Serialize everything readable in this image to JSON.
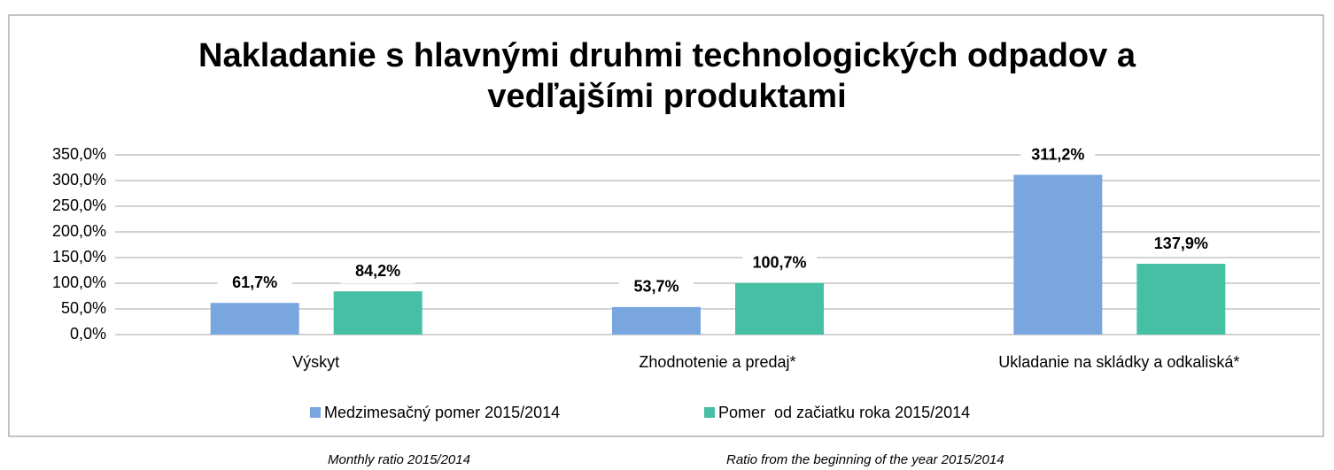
{
  "chart_data": {
    "type": "bar",
    "title": "Nakladanie s hlavnými druhmi technologických odpadov a vedľajšími produktami",
    "categories": [
      "Výskyt",
      "Zhodnotenie a predaj*",
      "Ukladanie na skládky a odkaliská*"
    ],
    "series": [
      {
        "name": "Medzimesačný pomer 2015/2014",
        "color": "#7aa6e0",
        "values": [
          61.7,
          53.7,
          311.2
        ],
        "value_labels": [
          "61,7%",
          "53,7%",
          "311,2%"
        ]
      },
      {
        "name": "Pomer  od začiatku roka 2015/2014",
        "color": "#45c0a4",
        "values": [
          84.2,
          100.7,
          137.9
        ],
        "value_labels": [
          "84,2%",
          "100,7%",
          "137,9%"
        ]
      }
    ],
    "ylim": [
      0,
      350
    ],
    "yticks": [
      {
        "value": 0,
        "label": "0,0%"
      },
      {
        "value": 50,
        "label": "50,0%"
      },
      {
        "value": 100,
        "label": "100,0%"
      },
      {
        "value": 150,
        "label": "150,0%"
      },
      {
        "value": 200,
        "label": "200,0%"
      },
      {
        "value": 250,
        "label": "250,0%"
      },
      {
        "value": 300,
        "label": "300,0%"
      },
      {
        "value": 350,
        "label": "350,0%"
      }
    ],
    "grid": true,
    "legend": "bottom"
  },
  "captions": [
    "Monthly ratio 2015/2014",
    "Ratio from the beginning of the year 2015/2014"
  ]
}
